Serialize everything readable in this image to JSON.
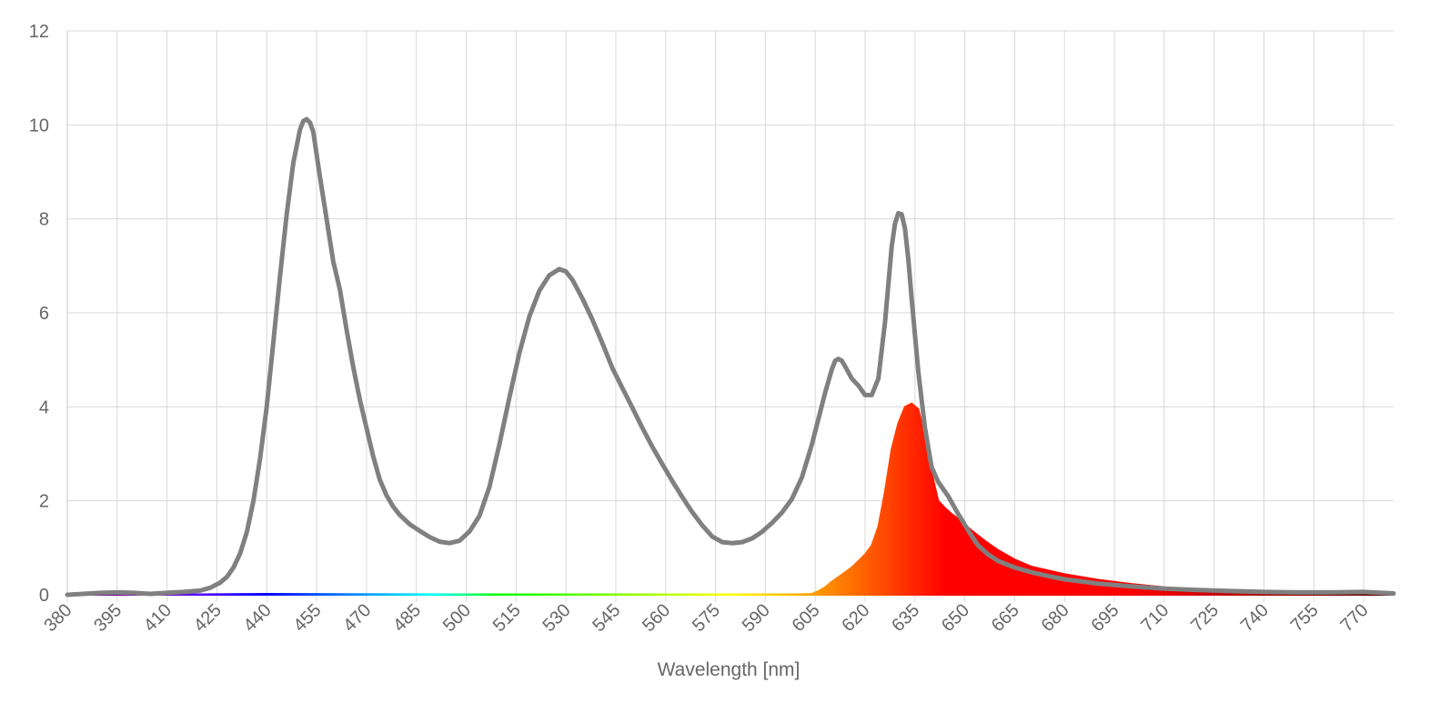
{
  "chart_data": {
    "type": "area",
    "title": "",
    "xlabel": "Wavelength [nm]",
    "ylabel": "",
    "xlim": [
      380,
      779
    ],
    "ylim": [
      0,
      12
    ],
    "x_ticks": [
      "380",
      "395",
      "410",
      "425",
      "440",
      "455",
      "470",
      "485",
      "500",
      "515",
      "530",
      "545",
      "560",
      "575",
      "590",
      "605",
      "620",
      "635",
      "650",
      "665",
      "680",
      "695",
      "710",
      "725",
      "740",
      "755",
      "770"
    ],
    "y_ticks": [
      "0",
      "2",
      "4",
      "6",
      "8",
      "10",
      "12"
    ],
    "grid": true,
    "legend": "none",
    "series": [
      {
        "style": "line",
        "color": "#808080",
        "x": [
          380,
          390,
          395,
          400,
          405,
          410,
          415,
          420,
          423,
          426,
          428,
          430,
          432,
          434,
          436,
          438,
          440,
          442,
          444,
          446,
          448,
          450,
          451,
          452,
          453,
          454,
          456,
          458,
          460,
          462,
          464,
          466,
          468,
          470,
          472,
          474,
          476,
          478,
          480,
          483,
          486,
          489,
          492,
          495,
          498,
          501,
          504,
          507,
          510,
          513,
          516,
          519,
          522,
          525,
          528,
          530,
          532,
          535,
          538,
          541,
          544,
          547,
          550,
          553,
          556,
          559,
          562,
          565,
          568,
          571,
          574,
          577,
          580,
          583,
          586,
          589,
          592,
          595,
          598,
          601,
          604,
          606,
          608,
          610,
          611,
          612,
          613,
          614,
          616,
          618,
          620,
          622,
          624,
          626,
          628,
          629,
          630,
          631,
          632,
          633,
          634,
          636,
          638,
          640,
          642,
          645,
          648,
          651,
          654,
          657,
          660,
          665,
          670,
          675,
          680,
          690,
          700,
          710,
          720,
          730,
          740,
          750,
          760,
          770,
          779
        ],
        "y": [
          0.0,
          0.04,
          0.05,
          0.04,
          0.02,
          0.04,
          0.06,
          0.09,
          0.15,
          0.26,
          0.38,
          0.58,
          0.88,
          1.33,
          2.0,
          2.9,
          4.0,
          5.4,
          6.8,
          8.1,
          9.2,
          9.9,
          10.08,
          10.12,
          10.05,
          9.85,
          8.9,
          8.0,
          7.1,
          6.5,
          5.65,
          4.85,
          4.15,
          3.55,
          2.95,
          2.45,
          2.12,
          1.88,
          1.7,
          1.5,
          1.36,
          1.23,
          1.13,
          1.1,
          1.15,
          1.35,
          1.68,
          2.3,
          3.2,
          4.2,
          5.15,
          5.92,
          6.47,
          6.8,
          6.93,
          6.88,
          6.7,
          6.3,
          5.85,
          5.35,
          4.82,
          4.4,
          3.98,
          3.55,
          3.15,
          2.78,
          2.42,
          2.08,
          1.76,
          1.48,
          1.24,
          1.12,
          1.1,
          1.12,
          1.2,
          1.34,
          1.53,
          1.75,
          2.04,
          2.5,
          3.2,
          3.75,
          4.3,
          4.8,
          4.98,
          5.02,
          4.98,
          4.86,
          4.6,
          4.45,
          4.25,
          4.25,
          4.6,
          5.8,
          7.4,
          7.9,
          8.12,
          8.1,
          7.8,
          7.15,
          6.3,
          4.75,
          3.55,
          2.72,
          2.4,
          2.1,
          1.72,
          1.37,
          1.05,
          0.86,
          0.72,
          0.58,
          0.48,
          0.4,
          0.33,
          0.24,
          0.18,
          0.13,
          0.1,
          0.08,
          0.06,
          0.05,
          0.05,
          0.06,
          0.03
        ]
      },
      {
        "style": "spectral-fill",
        "x": [
          380,
          420,
          440,
          500,
          600,
          604,
          606,
          608,
          610,
          612,
          614,
          616,
          618,
          620,
          622,
          624,
          626,
          628,
          630,
          632,
          634,
          636,
          638,
          640,
          642,
          644,
          646,
          648,
          650,
          652,
          656,
          660,
          665,
          670,
          680,
          690,
          700,
          710,
          720,
          730,
          740,
          750,
          760,
          770,
          779
        ],
        "y": [
          0.0,
          0.01,
          0.02,
          0.01,
          0.01,
          0.02,
          0.08,
          0.16,
          0.28,
          0.38,
          0.48,
          0.58,
          0.72,
          0.86,
          1.05,
          1.45,
          2.2,
          3.1,
          3.65,
          4.0,
          4.07,
          3.95,
          3.35,
          2.6,
          2.0,
          1.85,
          1.72,
          1.62,
          1.5,
          1.37,
          1.15,
          0.95,
          0.75,
          0.6,
          0.44,
          0.32,
          0.23,
          0.16,
          0.11,
          0.08,
          0.06,
          0.05,
          0.04,
          0.05,
          0.02
        ]
      }
    ]
  }
}
